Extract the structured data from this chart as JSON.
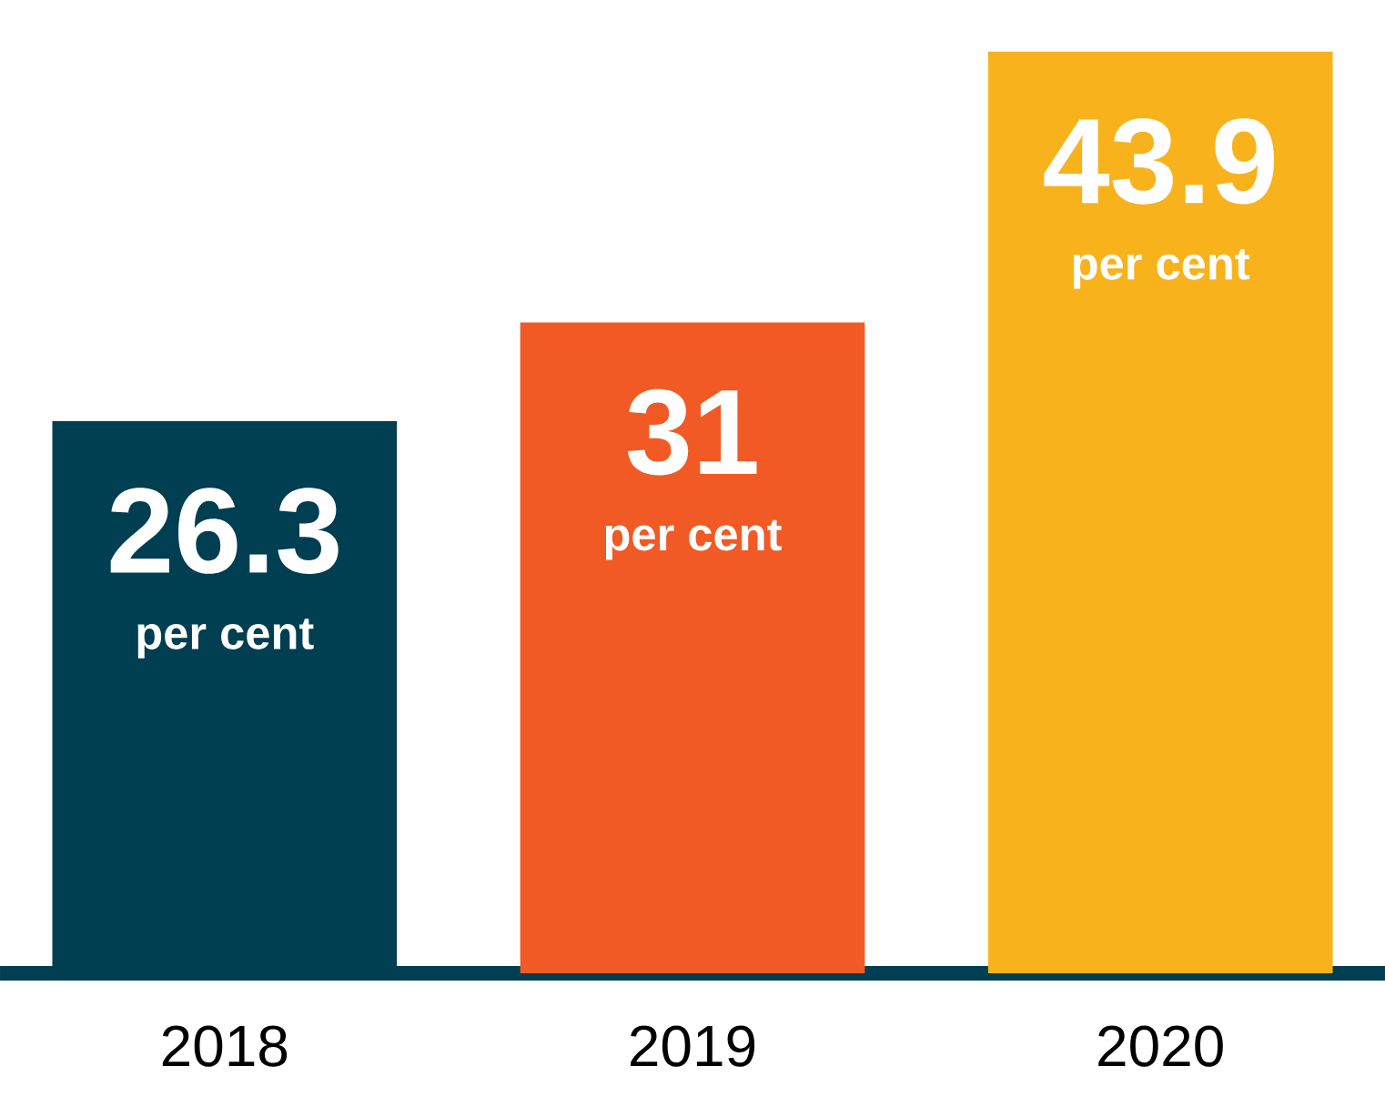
{
  "chart_data": {
    "type": "bar",
    "categories": [
      "2018",
      "2019",
      "2020"
    ],
    "values": [
      26.3,
      31,
      43.9
    ],
    "colors": [
      "#003e51",
      "#f15a24",
      "#f8b21c"
    ],
    "data_labels": true,
    "annotations": [
      "per cent",
      "per cent",
      "per cent"
    ]
  }
}
